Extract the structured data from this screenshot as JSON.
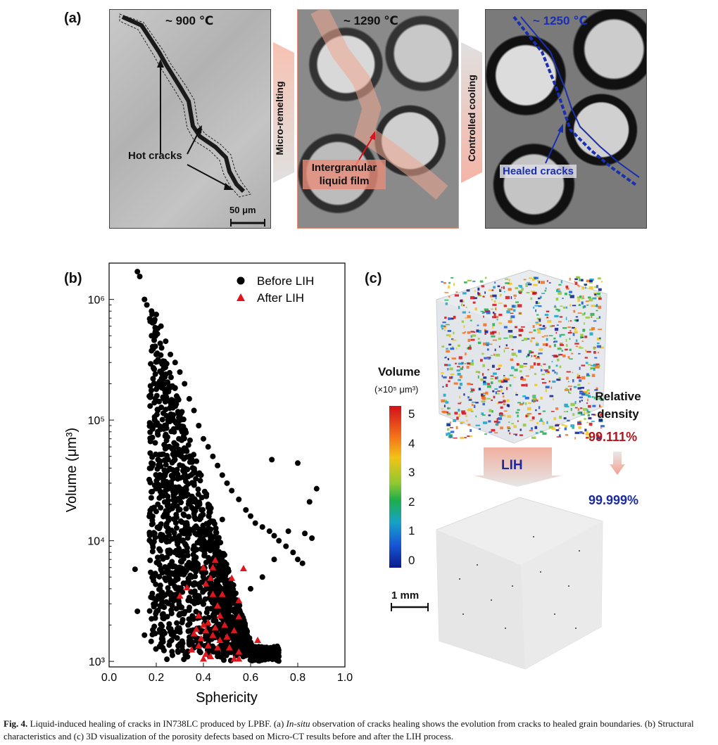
{
  "panel_a": {
    "label": "(a)",
    "temp_1": "~ 900 ℃",
    "temp_2": "~ 1290 ℃",
    "temp_3": "~ 1250 ℃",
    "hot_cracks": "Hot cracks",
    "scale_bar": "50 μm",
    "arrow_1": "Micro-remelting",
    "arrow_2": "Controlled cooling",
    "liquid_film_line1": "Intergranular",
    "liquid_film_line2": "liquid film",
    "healed_cracks": "Healed cracks",
    "colors": {
      "hot_accent": "#e8907a",
      "healed_accent": "#1a2fb0"
    }
  },
  "panel_b": {
    "label": "(b)"
  },
  "panel_c": {
    "label": "(c)",
    "colorbar_title": "Volume",
    "colorbar_unit": "(×10⁵ μm³)",
    "colorbar_ticks": [
      "5",
      "4",
      "3",
      "2",
      "1",
      "0"
    ],
    "relative_density_line1": "Relative",
    "relative_density_line2": "density",
    "density_before": "99.111%",
    "density_after": "99.999%",
    "process_label": "LIH",
    "scale_bar": "1 mm",
    "colors": {
      "before": "#b0161e",
      "after": "#1b2a9c"
    }
  },
  "chart_data": {
    "type": "scatter",
    "xlabel": "Sphericity",
    "ylabel": "Volume (μm³)",
    "xlim": [
      0.0,
      1.0
    ],
    "ylim": [
      900,
      2000000
    ],
    "yscale": "log",
    "xticks": [
      "0.0",
      "0.2",
      "0.4",
      "0.6",
      "0.8",
      "1.0"
    ],
    "yticks": [
      "10³",
      "10⁴",
      "10⁵",
      "10⁶"
    ],
    "legend_position": "top-right",
    "series": [
      {
        "name": "Before LIH",
        "marker": "circle",
        "color": "#000000",
        "points": [
          [
            0.12,
            1700000
          ],
          [
            0.13,
            1550000
          ],
          [
            0.15,
            1000000
          ],
          [
            0.16,
            900000
          ],
          [
            0.18,
            800000
          ],
          [
            0.2,
            750000
          ],
          [
            0.22,
            600000
          ],
          [
            0.24,
            450000
          ],
          [
            0.26,
            350000
          ],
          [
            0.28,
            300000
          ],
          [
            0.3,
            250000
          ],
          [
            0.32,
            200000
          ],
          [
            0.34,
            150000
          ],
          [
            0.36,
            120000
          ],
          [
            0.38,
            90000
          ],
          [
            0.4,
            70000
          ],
          [
            0.42,
            60000
          ],
          [
            0.44,
            50000
          ],
          [
            0.46,
            42000
          ],
          [
            0.48,
            35000
          ],
          [
            0.5,
            30000
          ],
          [
            0.52,
            26000
          ],
          [
            0.55,
            22000
          ],
          [
            0.58,
            18000
          ],
          [
            0.6,
            16000
          ],
          [
            0.62,
            14000
          ],
          [
            0.65,
            13000
          ],
          [
            0.68,
            12000
          ],
          [
            0.7,
            11000
          ],
          [
            0.72,
            10000
          ],
          [
            0.75,
            9000
          ],
          [
            0.78,
            8000
          ],
          [
            0.8,
            7000
          ],
          [
            0.82,
            6500
          ],
          [
            0.25,
            20000
          ],
          [
            0.3,
            10000
          ],
          [
            0.35,
            5000
          ],
          [
            0.4,
            3000
          ],
          [
            0.45,
            2500
          ],
          [
            0.5,
            2000
          ],
          [
            0.55,
            3000
          ],
          [
            0.6,
            4000
          ],
          [
            0.65,
            5000
          ],
          [
            0.7,
            7000
          ],
          [
            0.18,
            500000
          ],
          [
            0.2,
            350000
          ],
          [
            0.22,
            250000
          ],
          [
            0.25,
            100000
          ],
          [
            0.28,
            60000
          ],
          [
            0.32,
            40000
          ],
          [
            0.36,
            30000
          ],
          [
            0.42,
            20000
          ],
          [
            0.48,
            15000
          ],
          [
            0.38,
            1500
          ],
          [
            0.42,
            1200
          ],
          [
            0.46,
            1100
          ],
          [
            0.5,
            1300
          ],
          [
            0.54,
            1600
          ],
          [
            0.11,
            5800
          ],
          [
            0.12,
            2600
          ],
          [
            0.15,
            1650
          ],
          [
            0.69,
            47000
          ],
          [
            0.8,
            44000
          ],
          [
            0.88,
            27000
          ],
          [
            0.85,
            21000
          ],
          [
            0.76,
            12000
          ],
          [
            0.83,
            11500
          ],
          [
            0.86,
            10500
          ]
        ]
      },
      {
        "name": "After LIH",
        "marker": "triangle",
        "color": "#e0161e",
        "points": [
          [
            0.4,
            6000
          ],
          [
            0.45,
            6900
          ],
          [
            0.44,
            6000
          ],
          [
            0.57,
            5900
          ],
          [
            0.43,
            4900
          ],
          [
            0.52,
            4900
          ],
          [
            0.33,
            4100
          ],
          [
            0.41,
            4400
          ],
          [
            0.3,
            3500
          ],
          [
            0.48,
            3600
          ],
          [
            0.44,
            3600
          ],
          [
            0.55,
            3200
          ],
          [
            0.46,
            2900
          ],
          [
            0.38,
            2400
          ],
          [
            0.47,
            2400
          ],
          [
            0.55,
            2350
          ],
          [
            0.42,
            2100
          ],
          [
            0.4,
            2000
          ],
          [
            0.45,
            1900
          ],
          [
            0.49,
            2000
          ],
          [
            0.37,
            1850
          ],
          [
            0.41,
            1800
          ],
          [
            0.53,
            1800
          ],
          [
            0.36,
            1700
          ],
          [
            0.44,
            1650
          ],
          [
            0.5,
            1600
          ],
          [
            0.39,
            1550
          ],
          [
            0.47,
            1500
          ],
          [
            0.63,
            1500
          ],
          [
            0.38,
            1350
          ],
          [
            0.42,
            1350
          ],
          [
            0.46,
            1300
          ],
          [
            0.51,
            1300
          ],
          [
            0.55,
            1200
          ],
          [
            0.41,
            1150
          ],
          [
            0.35,
            1250
          ],
          [
            0.43,
            1100
          ],
          [
            0.53,
            1050
          ],
          [
            0.4,
            1050
          ],
          [
            0.55,
            1050
          ]
        ]
      }
    ]
  },
  "caption": {
    "fig_label": "Fig. 4.",
    "text_1": " Liquid-induced healing of cracks in IN738LC produced by LPBF. (a) ",
    "text_em": "In-situ",
    "text_2": " observation of cracks healing shows the evolution from cracks to healed grain boundaries. (b) Structural characteristics and (c) 3D visualization of the porosity defects based on Micro-CT results before and after the LIH process."
  }
}
